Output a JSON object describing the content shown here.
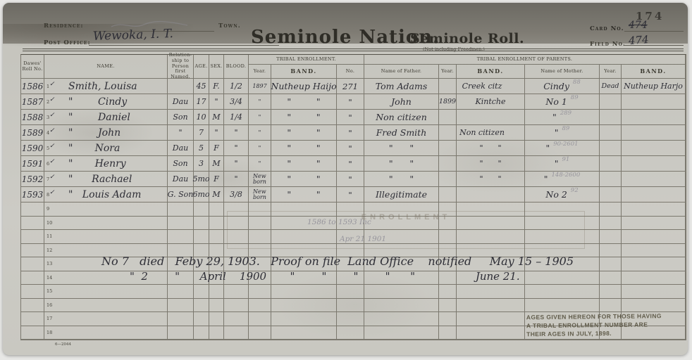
{
  "header": {
    "residence_label": "Residence:",
    "town_label": "Town.",
    "post_office_label": "Post Office:",
    "post_office_value": "Wewoka, I. T.",
    "title": "Seminole Nation.",
    "roll_title": "Seminole Roll.",
    "roll_note": "(Not including Freedmen.)",
    "card_no_label": "Card No.",
    "card_no_struck": "474",
    "card_no_stamp": "174",
    "field_no_label": "Field No.",
    "field_no_value": "474"
  },
  "table": {
    "headers": {
      "dawes": "Dawes'\nRoll No.",
      "name": "NAME.",
      "relation": "Relation-\nship to\nPerson\nfirst\nNamed.",
      "age": "AGE.",
      "sex": "SEX.",
      "blood": "BLOOD.",
      "tribal": "TRIBAL ENROLLMENT.",
      "year": "Year.",
      "band": "BAND.",
      "no": "No.",
      "parents": "TRIBAL ENROLLMENT OF PARENTS.",
      "father": "Name of Father.",
      "mother": "Name of Mother."
    },
    "rows": [
      {
        "dawes": "1586",
        "seq": "1",
        "check": "✓",
        "name": "Smith, Louisa",
        "rel": "",
        "age": "45",
        "sex": "F.",
        "blood": "1/2",
        "te_year": "1897",
        "te_band": "Nutheup Haijo",
        "te_no": "271",
        "father": "Tom Adams",
        "f_year": "",
        "f_band": "Creek citz",
        "f_band_shift": true,
        "mother": "Cindy",
        "m_pencil": "88",
        "m_year": "Dead",
        "m_band": "Nutheup Harjo"
      },
      {
        "dawes": "1587",
        "seq": "2",
        "check": "✓",
        "name": "\"        Cindy",
        "rel": "Dau",
        "age": "17",
        "sex": "\"",
        "blood": "3/4",
        "te_year": "\"",
        "te_band": "\"         \"",
        "te_no": "\"",
        "father": "John",
        "f_year": "1899",
        "f_band": "Kintche",
        "f_band_shift": false,
        "mother": "No 1",
        "m_pencil": "89",
        "m_year": "",
        "m_band": ""
      },
      {
        "dawes": "1588",
        "seq": "3",
        "check": "✓",
        "name": "\"        Daniel",
        "rel": "Son",
        "age": "10",
        "sex": "M",
        "blood": "1/4",
        "te_year": "\"",
        "te_band": "\"         \"",
        "te_no": "\"",
        "father": "Non citizen",
        "f_year": "",
        "f_band": "",
        "f_band_shift": false,
        "mother": "\"",
        "m_pencil": "289",
        "m_year": "",
        "m_band": ""
      },
      {
        "dawes": "1589",
        "seq": "4",
        "check": "✓",
        "name": "\"        John",
        "rel": "\"",
        "age": "7",
        "sex": "\"",
        "blood": "\"",
        "te_year": "\"",
        "te_band": "\"         \"",
        "te_no": "\"",
        "father": "Fred Smith",
        "f_year": "",
        "f_band": "Non citizen",
        "f_band_shift": true,
        "mother": "\"",
        "m_pencil": "89",
        "m_year": "",
        "m_band": ""
      },
      {
        "dawes": "1590",
        "seq": "5",
        "check": "✓",
        "name": "\"       Nora",
        "rel": "Dau",
        "age": "5",
        "sex": "F",
        "blood": "\"",
        "te_year": "\"",
        "te_band": "\"         \"",
        "te_no": "\"",
        "father": "\"      \"",
        "f_year": "",
        "f_band": "\"      \"",
        "f_band_shift": false,
        "mother": "\"",
        "m_pencil": "90-2601",
        "m_year": "",
        "m_band": ""
      },
      {
        "dawes": "1591",
        "seq": "6",
        "check": "✓",
        "name": "\"       Henry",
        "rel": "Son",
        "age": "3",
        "sex": "M",
        "blood": "\"",
        "te_year": "\"",
        "te_band": "\"         \"",
        "te_no": "\"",
        "father": "\"      \"",
        "f_year": "",
        "f_band": "\"      \"",
        "f_band_shift": false,
        "mother": "\"",
        "m_pencil": "91",
        "m_year": "",
        "m_band": ""
      },
      {
        "dawes": "1592",
        "seq": "7",
        "check": "✓",
        "name": "\"      Rachael",
        "rel": "Dau",
        "age": "5mo",
        "sex": "F",
        "blood": "\"",
        "te_year": "New\nborn",
        "te_band": "\"         \"",
        "te_no": "\"",
        "father": "\"      \"",
        "f_year": "",
        "f_band": "\"      \"",
        "f_band_shift": false,
        "mother": "\"",
        "m_pencil": "148-2600",
        "m_year": "",
        "m_band": ""
      },
      {
        "dawes": "1593",
        "seq": "8",
        "check": "✓",
        "name": "\"   Louis Adam",
        "rel": "G. Son",
        "age": "6mo",
        "sex": "M",
        "blood": "3/8",
        "te_year": "New\nborn",
        "te_band": "\"         \"",
        "te_no": "\"",
        "father": "Illegitimate",
        "f_year": "",
        "f_band": "",
        "f_band_shift": false,
        "mother": "No 2",
        "m_pencil": "92",
        "m_year": "",
        "m_band": ""
      },
      {
        "dawes": "",
        "seq": "9",
        "check": "",
        "name": "",
        "rel": "",
        "age": "",
        "sex": "",
        "blood": "",
        "te_year": "",
        "te_band": "",
        "te_no": "",
        "father": "",
        "f_year": "",
        "f_band": "",
        "f_band_shift": false,
        "mother": "",
        "m_pencil": "",
        "m_year": "",
        "m_band": ""
      },
      {
        "dawes": "",
        "seq": "10",
        "check": "",
        "name": "",
        "rel": "",
        "age": "",
        "sex": "",
        "blood": "",
        "te_year": "",
        "te_band": "",
        "te_no": "",
        "father": "",
        "f_year": "",
        "f_band": "",
        "f_band_shift": false,
        "mother": "",
        "m_pencil": "",
        "m_year": "",
        "m_band": ""
      },
      {
        "dawes": "",
        "seq": "11",
        "check": "",
        "name": "",
        "rel": "",
        "age": "",
        "sex": "",
        "blood": "",
        "te_year": "",
        "te_band": "",
        "te_no": "",
        "father": "",
        "f_year": "",
        "f_band": "",
        "f_band_shift": false,
        "mother": "",
        "m_pencil": "",
        "m_year": "",
        "m_band": ""
      },
      {
        "dawes": "",
        "seq": "12",
        "check": "",
        "name": "",
        "rel": "",
        "age": "",
        "sex": "",
        "blood": "",
        "te_year": "",
        "te_band": "",
        "te_no": "",
        "father": "",
        "f_year": "",
        "f_band": "",
        "f_band_shift": false,
        "mother": "",
        "m_pencil": "",
        "m_year": "",
        "m_band": ""
      },
      {
        "dawes": "",
        "seq": "13",
        "check": "",
        "name": "",
        "rel": "",
        "age": "",
        "sex": "",
        "blood": "",
        "te_year": "",
        "te_band": "",
        "te_no": "",
        "father": "",
        "f_year": "",
        "f_band": "",
        "f_band_shift": false,
        "mother": "",
        "m_pencil": "",
        "m_year": "",
        "m_band": ""
      },
      {
        "dawes": "",
        "seq": "14",
        "check": "",
        "name": "",
        "rel": "",
        "age": "",
        "sex": "",
        "blood": "",
        "te_year": "",
        "te_band": "",
        "te_no": "",
        "father": "",
        "f_year": "",
        "f_band": "",
        "f_band_shift": false,
        "mother": "",
        "m_pencil": "",
        "m_year": "",
        "m_band": ""
      },
      {
        "dawes": "",
        "seq": "15",
        "check": "",
        "name": "",
        "rel": "",
        "age": "",
        "sex": "",
        "blood": "",
        "te_year": "",
        "te_band": "",
        "te_no": "",
        "father": "",
        "f_year": "",
        "f_band": "",
        "f_band_shift": false,
        "mother": "",
        "m_pencil": "",
        "m_year": "",
        "m_band": ""
      },
      {
        "dawes": "",
        "seq": "16",
        "check": "",
        "name": "",
        "rel": "",
        "age": "",
        "sex": "",
        "blood": "",
        "te_year": "",
        "te_band": "",
        "te_no": "",
        "father": "",
        "f_year": "",
        "f_band": "",
        "f_band_shift": false,
        "mother": "",
        "m_pencil": "",
        "m_year": "",
        "m_band": ""
      },
      {
        "dawes": "",
        "seq": "17",
        "check": "",
        "name": "",
        "rel": "",
        "age": "",
        "sex": "",
        "blood": "",
        "te_year": "",
        "te_band": "",
        "te_no": "",
        "father": "",
        "f_year": "",
        "f_band": "",
        "f_band_shift": false,
        "mother": "",
        "m_pencil": "",
        "m_year": "",
        "m_band": ""
      },
      {
        "dawes": "",
        "seq": "18",
        "check": "",
        "name": "",
        "rel": "",
        "age": "",
        "sex": "",
        "blood": "",
        "te_year": "",
        "te_band": "",
        "te_no": "",
        "father": "",
        "f_year": "",
        "f_band": "",
        "f_band_shift": false,
        "mother": "",
        "m_pencil": "",
        "m_year": "",
        "m_band": ""
      }
    ]
  },
  "notes": {
    "range_pencil": "1586 to 1593 Inc",
    "date_pencil": "Apr 21 1901",
    "death_line1": "No 7   died   Feby 29, 1903.   Proof on file  Land Office    notified     May 15 – 1905",
    "death_line2": "\"  2        \"      April    1900       \"        \"        \"        \"      \"                  June 21."
  },
  "stamps": {
    "enrollment": "ENROLLMENT",
    "ages_line1": "AGES GIVEN HEREON FOR THOSE HAVING",
    "ages_line2": "A TRIBAL ENROLLMENT NUMBER ARE",
    "ages_line3": "THEIR AGES IN JULY, 1898."
  },
  "footer": {
    "form_number": "6—2044"
  }
}
